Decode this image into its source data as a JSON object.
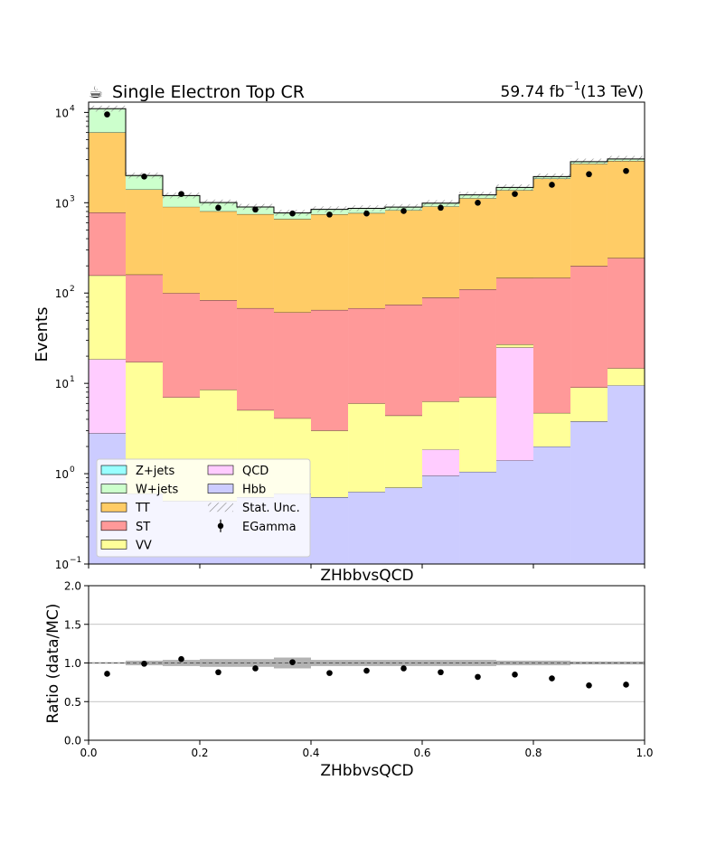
{
  "header": {
    "cms_glyph": "☕",
    "title": "Single Electron Top CR",
    "lumi_value": "59.74 fb",
    "lumi_exp": "−1",
    "lumi_energy": "(13 TeV)"
  },
  "chart_data": [
    {
      "type": "stacked-histogram",
      "title": "Single Electron Top CR",
      "xlabel": "ZHbbvsQCD",
      "ylabel": "Events",
      "yscale": "log",
      "ylim": [
        0.1,
        13000
      ],
      "xlim": [
        0.0,
        1.0
      ],
      "bin_edges": [
        0.0,
        0.0667,
        0.1333,
        0.2,
        0.2667,
        0.3333,
        0.4,
        0.4667,
        0.5333,
        0.6,
        0.6667,
        0.7333,
        0.8,
        0.8667,
        0.9333,
        1.0
      ],
      "y_tick_labels": [
        "10",
        "10",
        "10",
        "10",
        "10",
        "10"
      ],
      "y_tick_exponents": [
        "−1",
        "0",
        "1",
        "2",
        "3",
        "4"
      ],
      "y_tick_values": [
        0.1,
        1,
        10,
        100,
        1000,
        10000
      ],
      "stack_order_bottom_to_top": [
        "Hbb",
        "QCD",
        "VV",
        "ST",
        "TT",
        "W+jets",
        "Z+jets"
      ],
      "series": [
        {
          "name": "Hbb",
          "color": "#ccccff",
          "values": [
            2.8,
            0.6,
            0.5,
            0.5,
            0.55,
            0.6,
            0.55,
            0.63,
            0.7,
            0.95,
            1.05,
            1.4,
            2.0,
            3.8,
            9.5
          ]
        },
        {
          "name": "QCD",
          "color": "#ffccff",
          "values": [
            15.7,
            0,
            0,
            0,
            0,
            0,
            0,
            0,
            0,
            0.9,
            0,
            23.6,
            0,
            0,
            0
          ]
        },
        {
          "name": "VV",
          "color": "#ffff99",
          "values": [
            138,
            16.6,
            6.5,
            8.0,
            4.5,
            3.5,
            2.45,
            5.37,
            3.7,
            4.45,
            6.0,
            2.0,
            2.7,
            5.2,
            5.2
          ]
        },
        {
          "name": "ST",
          "color": "#ff9999",
          "values": [
            624,
            143,
            93,
            75,
            63,
            57,
            62,
            62,
            70,
            83,
            103,
            120,
            143,
            191,
            230
          ]
        },
        {
          "name": "TT",
          "color": "#ffcc66",
          "values": [
            5220,
            1240,
            800,
            720,
            680,
            600,
            680,
            700,
            750,
            820,
            1010,
            1230,
            1700,
            2500,
            2660
          ]
        },
        {
          "name": "W+jets",
          "color": "#ccffcc",
          "values": [
            5000,
            600,
            300,
            200,
            150,
            110,
            100,
            100,
            70,
            80,
            100,
            100,
            100,
            150,
            150
          ]
        },
        {
          "name": "Z+jets",
          "color": "#99ffff",
          "values": [
            0,
            0,
            0,
            0,
            0,
            0,
            0,
            0,
            0,
            0,
            0,
            0,
            0,
            0,
            0
          ]
        }
      ],
      "data_points": {
        "name": "EGamma",
        "x": [
          0.0333,
          0.1,
          0.1667,
          0.2333,
          0.3,
          0.3667,
          0.4333,
          0.5,
          0.5667,
          0.6333,
          0.7,
          0.7667,
          0.8333,
          0.9,
          0.9667
        ],
        "values": [
          9500,
          1950,
          1250,
          880,
          840,
          760,
          740,
          760,
          810,
          880,
          1000,
          1250,
          1580,
          2070,
          2250
        ]
      },
      "legend": {
        "placement": "lower-left",
        "columns": [
          [
            {
              "label": "Z+jets",
              "kind": "patch",
              "color": "#99ffff"
            },
            {
              "label": "W+jets",
              "kind": "patch",
              "color": "#ccffcc"
            },
            {
              "label": "TT",
              "kind": "patch",
              "color": "#ffcc66"
            },
            {
              "label": "ST",
              "kind": "patch",
              "color": "#ff9999"
            },
            {
              "label": "VV",
              "kind": "patch",
              "color": "#ffff99"
            }
          ],
          [
            {
              "label": "QCD",
              "kind": "patch",
              "color": "#ffccff"
            },
            {
              "label": "Hbb",
              "kind": "patch",
              "color": "#ccccff"
            },
            {
              "label": "Stat. Unc.",
              "kind": "hatch",
              "color": "#888888"
            },
            {
              "label": "EGamma",
              "kind": "errorbar",
              "color": "#000000"
            }
          ]
        ]
      }
    },
    {
      "type": "scatter",
      "xlabel": "ZHbbvsQCD",
      "ylabel": "Ratio (data/MC)",
      "xlim": [
        0.0,
        1.0
      ],
      "ylim": [
        0.0,
        2.0
      ],
      "x_tick_labels": [
        "0.0",
        "0.2",
        "0.4",
        "0.6",
        "0.8",
        "1.0"
      ],
      "x_tick_values": [
        0.0,
        0.2,
        0.4,
        0.6,
        0.8,
        1.0
      ],
      "y_tick_labels": [
        "0.0",
        "0.5",
        "1.0",
        "1.5",
        "2.0"
      ],
      "y_tick_values": [
        0.0,
        0.5,
        1.0,
        1.5,
        2.0
      ],
      "grid": "horizontal",
      "reference_line": 1.0,
      "x": [
        0.0333,
        0.1,
        0.1667,
        0.2333,
        0.3,
        0.3667,
        0.4333,
        0.5,
        0.5667,
        0.6333,
        0.7,
        0.7667,
        0.8333,
        0.9,
        0.9667
      ],
      "values": [
        0.86,
        0.99,
        1.05,
        0.88,
        0.93,
        1.01,
        0.87,
        0.9,
        0.93,
        0.88,
        0.82,
        0.85,
        0.8,
        0.71,
        0.72
      ],
      "unc_band": [
        0.01,
        0.03,
        0.04,
        0.05,
        0.05,
        0.07,
        0.04,
        0.04,
        0.04,
        0.04,
        0.04,
        0.03,
        0.03,
        0.02,
        0.02
      ]
    }
  ]
}
